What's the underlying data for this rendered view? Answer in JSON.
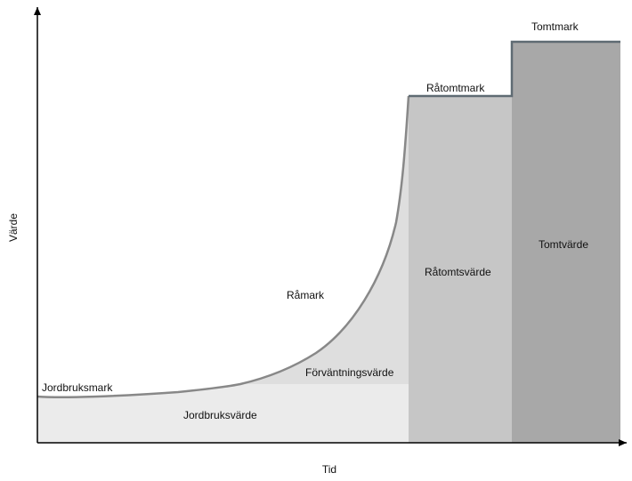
{
  "diagram": {
    "y_axis_title": "Värde",
    "x_axis_title": "Tid",
    "stages": [
      {
        "id": "jordbruksmark",
        "label": "Jordbruksmark"
      },
      {
        "id": "ramark",
        "label": "Råmark"
      },
      {
        "id": "ratomtmark",
        "label": "Råtomtmark"
      },
      {
        "id": "tomtmark",
        "label": "Tomtmark"
      }
    ],
    "value_components": [
      {
        "id": "jordbruksvarde",
        "label": "Jordbruksvärde",
        "color": "#ebebeb"
      },
      {
        "id": "forvantningsvarde",
        "label": "Förväntningsvärde",
        "color": "#dedede"
      },
      {
        "id": "ratomtsvarde",
        "label": "Råtomtsvärde",
        "color": "#c6c6c6"
      },
      {
        "id": "tomtvarde",
        "label": "Tomtvärde",
        "color": "#a8a8a8"
      }
    ],
    "value_line_color": "#888888",
    "step_line_color": "#5f6b73",
    "axis_color": "#000000"
  }
}
